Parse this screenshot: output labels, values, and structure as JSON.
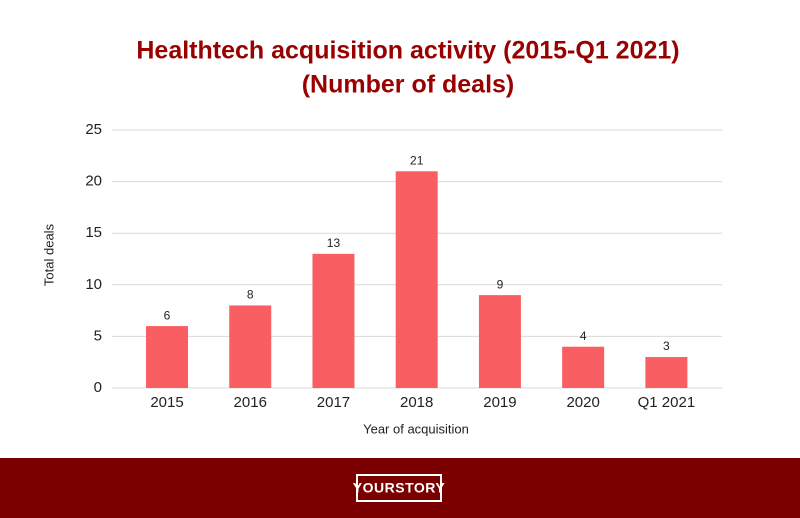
{
  "chart_data": {
    "type": "bar",
    "title": "Healthtech acquisition activity (2015-Q1 2021)",
    "subtitle": "(Number of deals)",
    "x_label": "Year of acquisition",
    "y_label": "Total deals",
    "categories": [
      "2015",
      "2016",
      "2017",
      "2018",
      "2019",
      "2020",
      "Q1 2021"
    ],
    "values": [
      6,
      8,
      13,
      21,
      9,
      4,
      3
    ],
    "color": "#f95f62",
    "ylim": [
      0,
      25
    ],
    "yticks": [
      0,
      5,
      10,
      15,
      20,
      25
    ],
    "grid": true
  },
  "footer": {
    "logo": "YOURSTORY"
  }
}
